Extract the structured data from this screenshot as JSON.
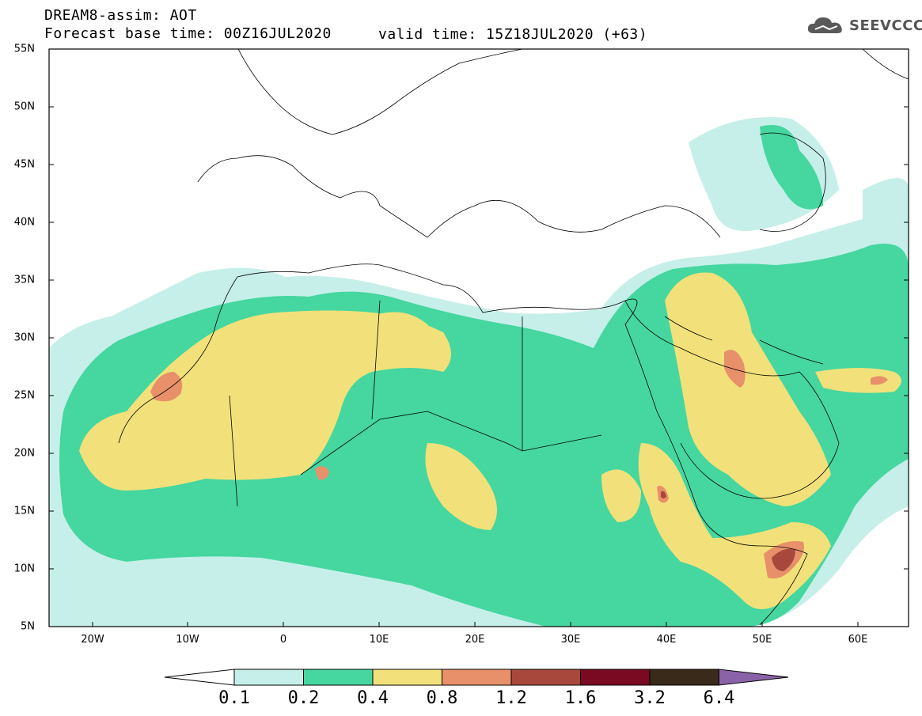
{
  "header": {
    "title": "DREAM8-assim: AOT",
    "base_time": "Forecast base time: 00Z16JUL2020",
    "valid_time": "valid time: 15Z18JUL2020 (+63)",
    "logo_text": "SEEVCCC"
  },
  "map": {
    "lat_labels": [
      "55N",
      "50N",
      "45N",
      "40N",
      "35N",
      "30N",
      "25N",
      "20N",
      "15N",
      "10N",
      "5N"
    ],
    "lon_labels": [
      "20W",
      "10W",
      "0",
      "10E",
      "20E",
      "30E",
      "40E",
      "50E",
      "60E"
    ],
    "lon_range": [
      -25,
      65
    ],
    "lat_range": [
      5,
      55
    ]
  },
  "colorbar": {
    "labels": [
      "0.1",
      "0.2",
      "0.4",
      "0.8",
      "1.2",
      "1.6",
      "3.2",
      "6.4"
    ],
    "colors": [
      "#c6efe9",
      "#46d6a0",
      "#f2e17a",
      "#e8906a",
      "#a8483c",
      "#7a0a22",
      "#3a2a1a",
      "#8a62a8"
    ]
  }
}
